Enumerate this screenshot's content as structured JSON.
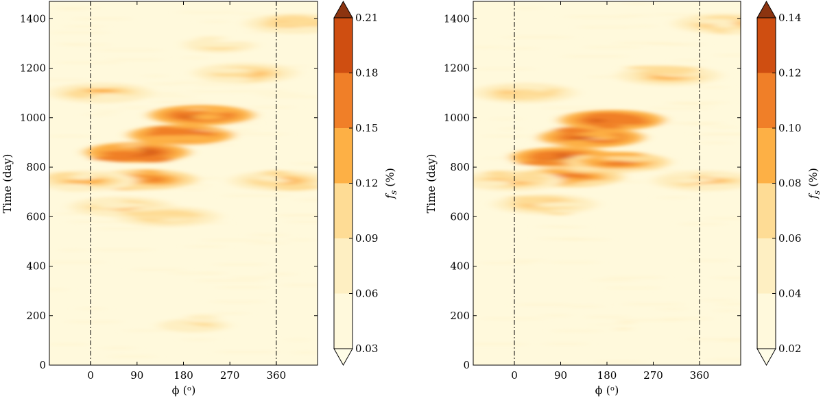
{
  "chart_data": [
    {
      "type": "heatmap",
      "title": "",
      "xlabel": "ϕ (ᵒ)",
      "ylabel": "Time (day)",
      "xlim": [
        -80,
        440
      ],
      "ylim": [
        0,
        1470
      ],
      "x_ticks": [
        0,
        90,
        180,
        270,
        360
      ],
      "y_ticks": [
        0,
        200,
        400,
        600,
        800,
        1000,
        1200,
        1400
      ],
      "vlines": [
        0,
        360
      ],
      "colorbar": {
        "label": "f_s (%)",
        "levels": [
          0.03,
          0.06,
          0.09,
          0.12,
          0.15,
          0.18,
          0.21
        ],
        "colors": [
          "#fff9dc",
          "#feefc2",
          "#fedc95",
          "#fdb045",
          "#f07f28",
          "#cf4e11",
          "#8c3410"
        ],
        "extend": "both"
      },
      "features": [
        {
          "x": 90,
          "y": 860,
          "value": 0.19
        },
        {
          "x": 175,
          "y": 930,
          "value": 0.19
        },
        {
          "x": 215,
          "y": 1010,
          "value": 0.2
        },
        {
          "x": 105,
          "y": 750,
          "value": 0.16
        },
        {
          "x": 60,
          "y": 640,
          "value": 0.14
        },
        {
          "x": 150,
          "y": 600,
          "value": 0.12
        },
        {
          "x": -10,
          "y": 745,
          "value": 0.14
        },
        {
          "x": 370,
          "y": 745,
          "value": 0.14
        },
        {
          "x": 300,
          "y": 1180,
          "value": 0.13
        },
        {
          "x": 400,
          "y": 1380,
          "value": 0.13
        },
        {
          "x": 20,
          "y": 1100,
          "value": 0.12
        },
        {
          "x": 250,
          "y": 1290,
          "value": 0.1
        },
        {
          "x": 200,
          "y": 160,
          "value": 0.09
        }
      ]
    },
    {
      "type": "heatmap",
      "title": "",
      "xlabel": "ϕ (ᵒ)",
      "ylabel": "Time (day)",
      "xlim": [
        -80,
        440
      ],
      "ylim": [
        0,
        1470
      ],
      "x_ticks": [
        0,
        90,
        180,
        270,
        360
      ],
      "y_ticks": [
        0,
        200,
        400,
        600,
        800,
        1000,
        1200,
        1400
      ],
      "vlines": [
        0,
        360
      ],
      "colorbar": {
        "label": "f_s (%)",
        "levels": [
          0.02,
          0.04,
          0.06,
          0.08,
          0.1,
          0.12,
          0.14
        ],
        "colors": [
          "#fff9dc",
          "#feefc2",
          "#fedc95",
          "#fdb045",
          "#f07f28",
          "#cf4e11",
          "#8c3410"
        ],
        "extend": "both"
      },
      "features": [
        {
          "x": 95,
          "y": 840,
          "value": 0.125
        },
        {
          "x": 150,
          "y": 920,
          "value": 0.13
        },
        {
          "x": 190,
          "y": 990,
          "value": 0.125
        },
        {
          "x": 110,
          "y": 760,
          "value": 0.1
        },
        {
          "x": 60,
          "y": 650,
          "value": 0.09
        },
        {
          "x": -5,
          "y": 745,
          "value": 0.095
        },
        {
          "x": 370,
          "y": 745,
          "value": 0.09
        },
        {
          "x": 300,
          "y": 1170,
          "value": 0.09
        },
        {
          "x": 410,
          "y": 1380,
          "value": 0.095
        },
        {
          "x": 20,
          "y": 1100,
          "value": 0.08
        },
        {
          "x": 200,
          "y": 820,
          "value": 0.1
        },
        {
          "x": 200,
          "y": 160,
          "value": 0.06
        }
      ]
    }
  ]
}
